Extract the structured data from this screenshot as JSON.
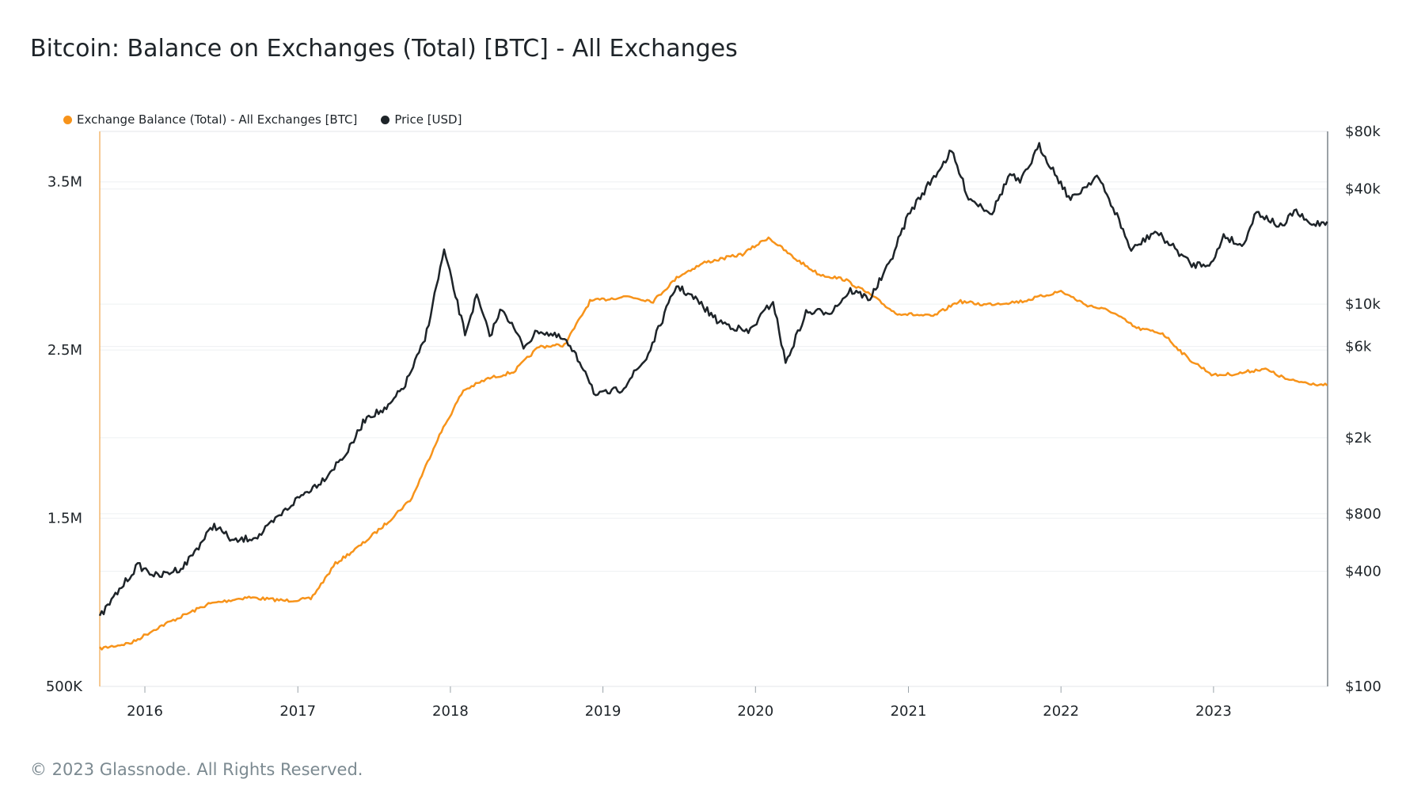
{
  "title": "Bitcoin: Balance on Exchanges (Total) [BTC] - All Exchanges",
  "copyright": "© 2023 Glassnode. All Rights Reserved.",
  "colors": {
    "balance": "#f7931a",
    "price": "#1e2429",
    "grid": "#eef0f2"
  },
  "chart_data": {
    "type": "line",
    "title": "Bitcoin: Balance on Exchanges (Total) [BTC] - All Exchanges",
    "legend_position": "top-left",
    "grid": true,
    "x_range": [
      "2015-09-15",
      "2023-10-01"
    ],
    "x_ticks": [
      "2016",
      "2017",
      "2018",
      "2019",
      "2020",
      "2021",
      "2022",
      "2023"
    ],
    "y_left": {
      "label": "",
      "ticks": [
        "500K",
        "1.5M",
        "2.5M",
        "3.5M"
      ],
      "tick_values": [
        500000,
        1500000,
        2500000,
        3500000
      ],
      "range": [
        500000,
        3800000
      ]
    },
    "y_right": {
      "label": "",
      "scale": "log",
      "ticks": [
        "$100",
        "$400",
        "$800",
        "$2k",
        "$6k",
        "$10k",
        "$40k",
        "$80k"
      ],
      "tick_values": [
        100,
        400,
        800,
        2000,
        6000,
        10000,
        40000,
        80000
      ],
      "range": [
        100,
        80000
      ]
    },
    "series": [
      {
        "name": "Exchange Balance (Total) - All Exchanges [BTC]",
        "axis": "left",
        "points": [
          [
            "2015-09-15",
            725000
          ],
          [
            "2015-12-01",
            760000
          ],
          [
            "2016-02-01",
            850000
          ],
          [
            "2016-04-01",
            920000
          ],
          [
            "2016-06-01",
            990000
          ],
          [
            "2016-09-01",
            1030000
          ],
          [
            "2016-12-01",
            1010000
          ],
          [
            "2017-02-01",
            1020000
          ],
          [
            "2017-04-01",
            1230000
          ],
          [
            "2017-06-01",
            1340000
          ],
          [
            "2017-08-01",
            1470000
          ],
          [
            "2017-10-01",
            1620000
          ],
          [
            "2017-12-01",
            1970000
          ],
          [
            "2018-02-01",
            2260000
          ],
          [
            "2018-04-01",
            2330000
          ],
          [
            "2018-06-01",
            2370000
          ],
          [
            "2018-08-01",
            2520000
          ],
          [
            "2018-10-01",
            2530000
          ],
          [
            "2018-12-01",
            2790000
          ],
          [
            "2019-03-01",
            2820000
          ],
          [
            "2019-05-01",
            2790000
          ],
          [
            "2019-07-01",
            2940000
          ],
          [
            "2019-09-01",
            3020000
          ],
          [
            "2019-12-01",
            3070000
          ],
          [
            "2020-02-01",
            3170000
          ],
          [
            "2020-04-01",
            3050000
          ],
          [
            "2020-06-01",
            2950000
          ],
          [
            "2020-08-01",
            2920000
          ],
          [
            "2020-10-01",
            2830000
          ],
          [
            "2020-12-01",
            2720000
          ],
          [
            "2021-03-01",
            2700000
          ],
          [
            "2021-05-01",
            2790000
          ],
          [
            "2021-07-01",
            2770000
          ],
          [
            "2021-10-01",
            2790000
          ],
          [
            "2022-01-01",
            2850000
          ],
          [
            "2022-03-01",
            2770000
          ],
          [
            "2022-05-01",
            2730000
          ],
          [
            "2022-07-01",
            2630000
          ],
          [
            "2022-09-01",
            2600000
          ],
          [
            "2022-11-01",
            2450000
          ],
          [
            "2023-01-01",
            2350000
          ],
          [
            "2023-03-01",
            2360000
          ],
          [
            "2023-05-01",
            2390000
          ],
          [
            "2023-07-01",
            2320000
          ],
          [
            "2023-09-30",
            2290000
          ]
        ]
      },
      {
        "name": "Price [USD]",
        "axis": "right",
        "points": [
          [
            "2015-09-15",
            230
          ],
          [
            "2015-11-01",
            320
          ],
          [
            "2015-12-15",
            430
          ],
          [
            "2016-02-01",
            375
          ],
          [
            "2016-04-01",
            420
          ],
          [
            "2016-06-15",
            700
          ],
          [
            "2016-08-01",
            570
          ],
          [
            "2016-10-01",
            615
          ],
          [
            "2016-12-31",
            960
          ],
          [
            "2017-03-01",
            1200
          ],
          [
            "2017-05-01",
            1700
          ],
          [
            "2017-06-15",
            2600
          ],
          [
            "2017-08-01",
            2800
          ],
          [
            "2017-09-15",
            3800
          ],
          [
            "2017-11-01",
            6500
          ],
          [
            "2017-12-17",
            19000
          ],
          [
            "2018-02-05",
            7000
          ],
          [
            "2018-03-05",
            11000
          ],
          [
            "2018-04-05",
            6800
          ],
          [
            "2018-05-05",
            9600
          ],
          [
            "2018-06-25",
            6000
          ],
          [
            "2018-08-01",
            7300
          ],
          [
            "2018-10-01",
            6500
          ],
          [
            "2018-11-20",
            4500
          ],
          [
            "2018-12-15",
            3300
          ],
          [
            "2019-02-15",
            3600
          ],
          [
            "2019-04-15",
            5200
          ],
          [
            "2019-06-26",
            12500
          ],
          [
            "2019-08-15",
            10400
          ],
          [
            "2019-10-01",
            8200
          ],
          [
            "2019-12-15",
            7100
          ],
          [
            "2020-02-12",
            10400
          ],
          [
            "2020-03-13",
            4900
          ],
          [
            "2020-05-01",
            9000
          ],
          [
            "2020-07-01",
            9200
          ],
          [
            "2020-08-15",
            11800
          ],
          [
            "2020-10-01",
            10700
          ],
          [
            "2020-11-15",
            16000
          ],
          [
            "2020-12-31",
            29000
          ],
          [
            "2021-01-20",
            34000
          ],
          [
            "2021-04-14",
            63000
          ],
          [
            "2021-05-25",
            36000
          ],
          [
            "2021-07-20",
            30000
          ],
          [
            "2021-09-01",
            48000
          ],
          [
            "2021-09-25",
            43000
          ],
          [
            "2021-11-10",
            67000
          ],
          [
            "2022-01-24",
            35000
          ],
          [
            "2022-03-28",
            47000
          ],
          [
            "2022-05-15",
            29000
          ],
          [
            "2022-06-18",
            19000
          ],
          [
            "2022-08-14",
            24000
          ],
          [
            "2022-10-01",
            19500
          ],
          [
            "2022-11-10",
            16000
          ],
          [
            "2022-12-31",
            16500
          ],
          [
            "2023-01-25",
            23000
          ],
          [
            "2023-03-10",
            20000
          ],
          [
            "2023-04-14",
            30500
          ],
          [
            "2023-06-15",
            25000
          ],
          [
            "2023-07-13",
            31000
          ],
          [
            "2023-08-20",
            26000
          ],
          [
            "2023-09-30",
            27000
          ]
        ]
      }
    ]
  }
}
